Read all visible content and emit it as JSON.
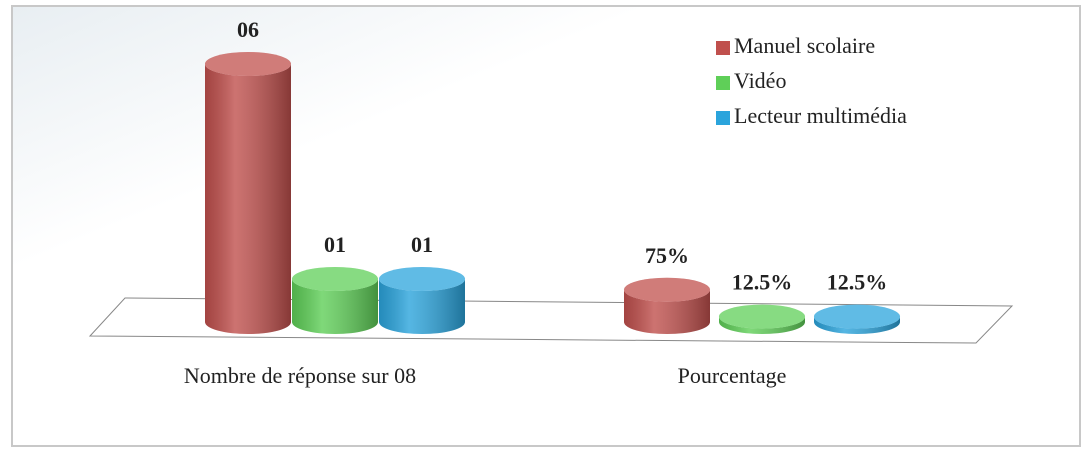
{
  "chart_data": {
    "type": "bar3d",
    "categories": [
      "Nombre de réponse sur 08",
      "Pourcentage"
    ],
    "series": [
      {
        "name": "Manuel scolaire",
        "color": "#c0504d",
        "values": [
          6,
          0.75
        ],
        "value_labels": [
          "06",
          "75%"
        ]
      },
      {
        "name": "Vidéo",
        "color": "#5fcf58",
        "values": [
          1,
          0.125
        ],
        "value_labels": [
          "01",
          "12.5%"
        ]
      },
      {
        "name": "Lecteur multimédia",
        "color": "#2ba4dc",
        "values": [
          1,
          0.125
        ],
        "value_labels": [
          "01",
          "12.5%"
        ]
      }
    ],
    "legend": "top-right"
  }
}
